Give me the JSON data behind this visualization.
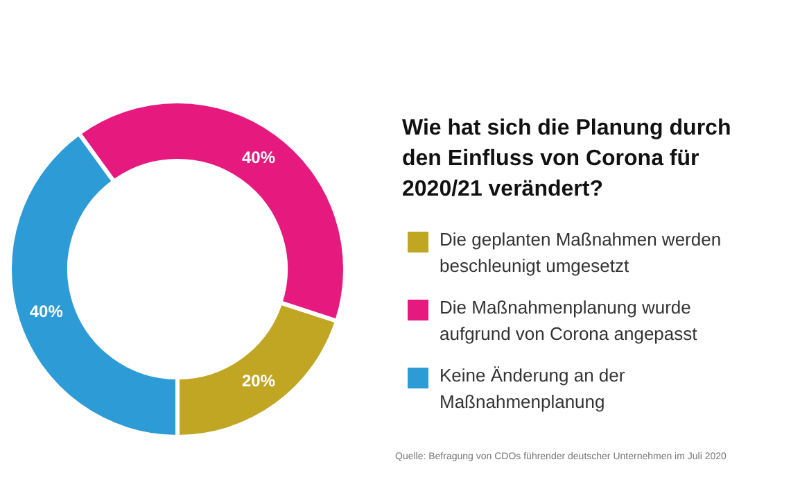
{
  "chart_data": {
    "type": "donut",
    "title": "Wie hat sich die Planung durch den Einfluss von Corona für 2020/21 verändert?",
    "categories": [
      "Die geplanten Maßnahmen werden beschleunigt umgesetzt",
      "Die Maßnahmenplanung wurde aufgrund von Corona angepasst",
      "Keine Änderung an der Maßnahmenplanung"
    ],
    "values": [
      20,
      40,
      40
    ],
    "colors": [
      "#c0a623",
      "#e5197e",
      "#2d9bd6"
    ],
    "value_labels": [
      "20%",
      "40%",
      "40%"
    ],
    "legend": "right",
    "annotations": [
      "Quelle: Befragung von CDOs führender deutscher Unternehmen im Juli 2020"
    ]
  }
}
